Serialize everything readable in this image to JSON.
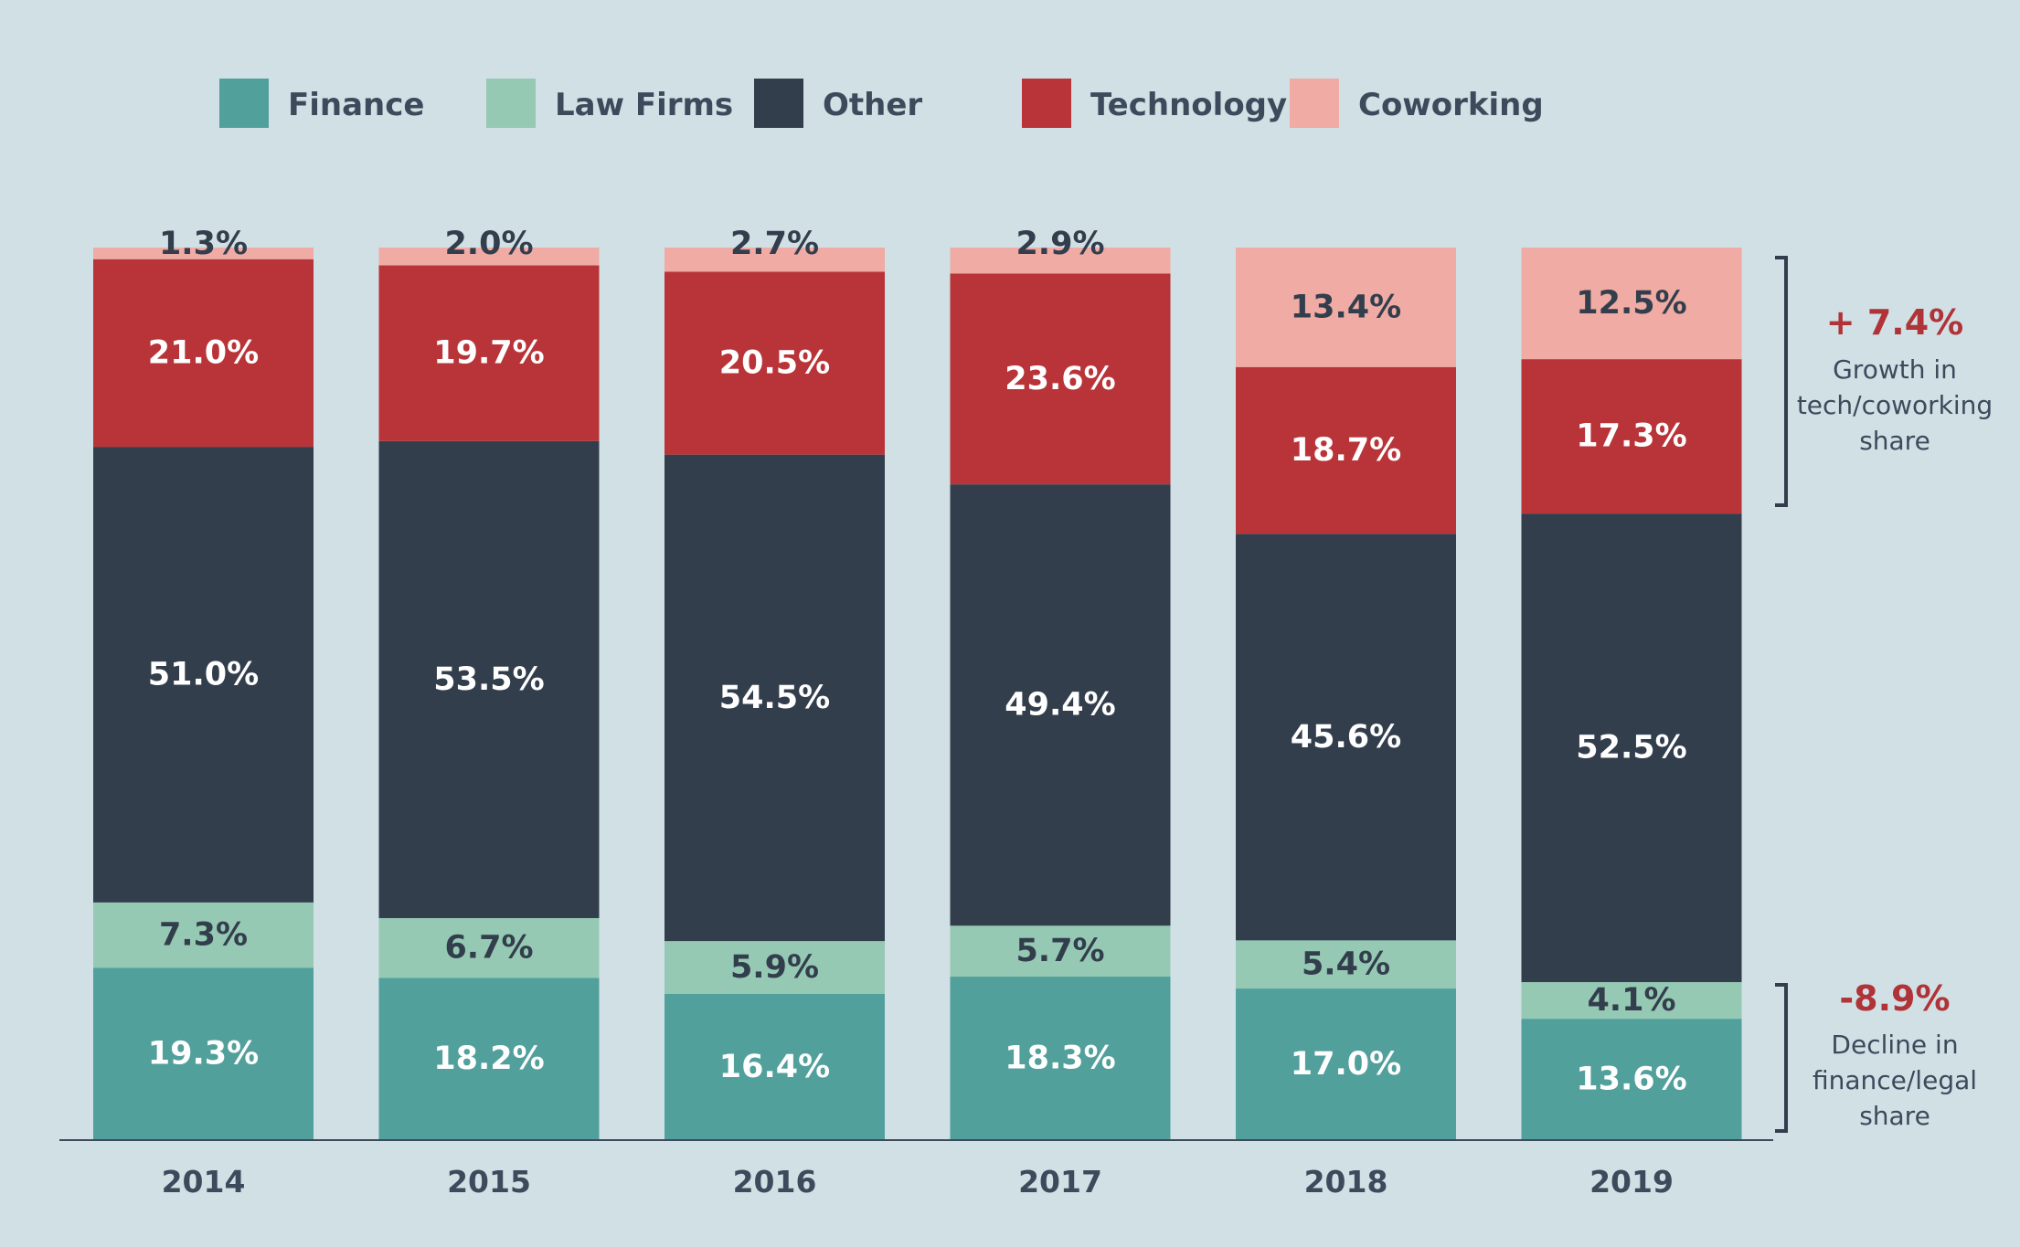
{
  "colors": {
    "background": "#d0e0e5",
    "finance": "#52a09c",
    "law_firms": "#96c9b3",
    "other": "#333e4d",
    "technology": "#b93438",
    "coworking": "#efaba4",
    "annotation_value": "#b03338",
    "text": "#3d4a5c"
  },
  "chart_data": {
    "type": "bar",
    "stacked": true,
    "normalized": true,
    "legend_position": "top",
    "categories": [
      "2014",
      "2015",
      "2016",
      "2017",
      "2018",
      "2019"
    ],
    "series": [
      {
        "name": "Finance",
        "color": "#52a09c",
        "label_color": "#ffffff",
        "values": [
          19.3,
          18.2,
          16.4,
          18.3,
          17.0,
          13.6
        ]
      },
      {
        "name": "Law Firms",
        "color": "#96c9b3",
        "label_color": "#333e4d",
        "values": [
          7.3,
          6.7,
          5.9,
          5.7,
          5.4,
          4.1
        ]
      },
      {
        "name": "Other",
        "color": "#333e4d",
        "label_color": "#ffffff",
        "values": [
          51.0,
          53.5,
          54.5,
          49.4,
          45.6,
          52.5
        ]
      },
      {
        "name": "Technology",
        "color": "#b93438",
        "label_color": "#ffffff",
        "values": [
          21.0,
          19.7,
          20.5,
          23.6,
          18.7,
          17.3
        ]
      },
      {
        "name": "Coworking",
        "color": "#efaba4",
        "label_color": "#333e4d",
        "values": [
          1.3,
          2.0,
          2.7,
          2.9,
          13.4,
          12.5
        ]
      }
    ],
    "value_labels": [
      [
        "19.3%",
        "18.2%",
        "16.4%",
        "18.3%",
        "17.0%",
        "13.6%"
      ],
      [
        "7.3%",
        "6.7%",
        "5.9%",
        "5.7%",
        "5.4%",
        "4.1%"
      ],
      [
        "51.0%",
        "53.5%",
        "54.5%",
        "49.4%",
        "45.6%",
        "52.5%"
      ],
      [
        "21.0%",
        "19.7%",
        "20.5%",
        "23.6%",
        "18.7%",
        "17.3%"
      ],
      [
        "1.3%",
        "2.0%",
        "2.7%",
        "2.9%",
        "13.4%",
        "12.5%"
      ]
    ],
    "annotations": [
      {
        "value": "+ 7.4%",
        "lines": [
          "Growth in",
          "tech/coworking",
          "share"
        ],
        "spans_series": [
          "Technology",
          "Coworking"
        ]
      },
      {
        "value": "-8.9%",
        "lines": [
          "Decline in",
          "finance/legal",
          "share"
        ],
        "spans_series": [
          "Finance",
          "Law Firms"
        ]
      }
    ]
  }
}
